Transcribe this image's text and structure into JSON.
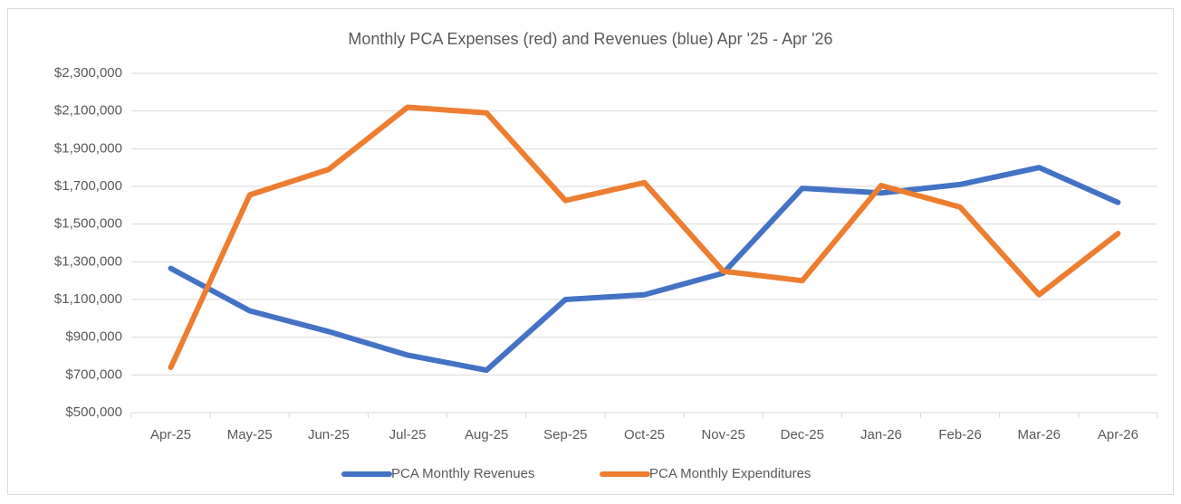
{
  "chart_data": {
    "type": "line",
    "title": "Monthly PCA Expenses (red) and Revenues (blue) Apr '25 - Apr '26",
    "categories": [
      "Apr-25",
      "May-25",
      "Jun-25",
      "Jul-25",
      "Aug-25",
      "Sep-25",
      "Oct-25",
      "Nov-25",
      "Dec-25",
      "Jan-26",
      "Feb-26",
      "Mar-26",
      "Apr-26"
    ],
    "series": [
      {
        "name": "PCA Monthly Revenues",
        "color": "#4472c4",
        "values": [
          1265000,
          1040000,
          930000,
          805000,
          725000,
          1100000,
          1125000,
          1240000,
          1690000,
          1665000,
          1710000,
          1800000,
          1615000
        ]
      },
      {
        "name": "PCA Monthly Expenditures",
        "color": "#ed7d31",
        "values": [
          740000,
          1655000,
          1790000,
          2120000,
          2090000,
          1625000,
          1720000,
          1250000,
          1200000,
          1705000,
          1590000,
          1125000,
          1450000
        ]
      }
    ],
    "ylim": [
      500000,
      2300000
    ],
    "yticks": [
      {
        "value": 500000,
        "label": "$500,000"
      },
      {
        "value": 700000,
        "label": "$700,000"
      },
      {
        "value": 900000,
        "label": "$900,000"
      },
      {
        "value": 1100000,
        "label": "$1,100,000"
      },
      {
        "value": 1300000,
        "label": "$1,300,000"
      },
      {
        "value": 1500000,
        "label": "$1,500,000"
      },
      {
        "value": 1700000,
        "label": "$1,700,000"
      },
      {
        "value": 1900000,
        "label": "$1,900,000"
      },
      {
        "value": 2100000,
        "label": "$2,100,000"
      },
      {
        "value": 2300000,
        "label": "$2,300,000"
      }
    ],
    "grid": true,
    "legend": "bottom"
  }
}
